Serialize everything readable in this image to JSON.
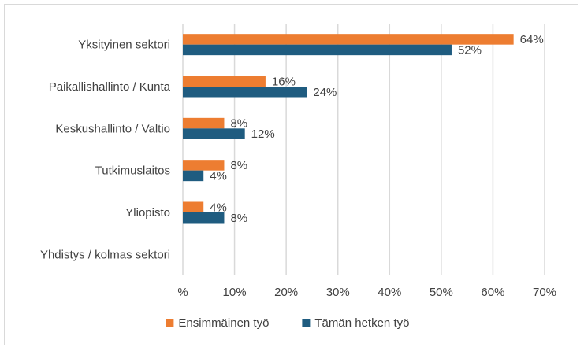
{
  "chart_data": {
    "type": "bar",
    "orientation": "horizontal",
    "title": "",
    "xlabel": "",
    "ylabel": "",
    "xlim": [
      0,
      70
    ],
    "x_ticks": [
      0,
      10,
      20,
      30,
      40,
      50,
      60,
      70
    ],
    "x_tick_labels": [
      "%",
      "10%",
      "20%",
      "30%",
      "40%",
      "50%",
      "60%",
      "70%"
    ],
    "grid": "vertical",
    "legend_position": "bottom",
    "categories": [
      "Yksityinen sektori",
      "Paikallishallinto / Kunta",
      "Keskushallinto / Valtio",
      "Tutkimuslaitos",
      "Yliopisto",
      "Yhdistys / kolmas sektori"
    ],
    "series": [
      {
        "name": "Ensimmäinen työ",
        "color": "#ed7d31",
        "values": [
          64,
          16,
          8,
          8,
          4,
          null
        ],
        "labels": [
          "64%",
          "16%",
          "8%",
          "8%",
          "4%",
          ""
        ]
      },
      {
        "name": "Tämän hetken työ",
        "color": "#1f5c80",
        "values": [
          52,
          24,
          12,
          4,
          8,
          null
        ],
        "labels": [
          "52%",
          "24%",
          "12%",
          "4%",
          "8%",
          ""
        ]
      }
    ]
  }
}
